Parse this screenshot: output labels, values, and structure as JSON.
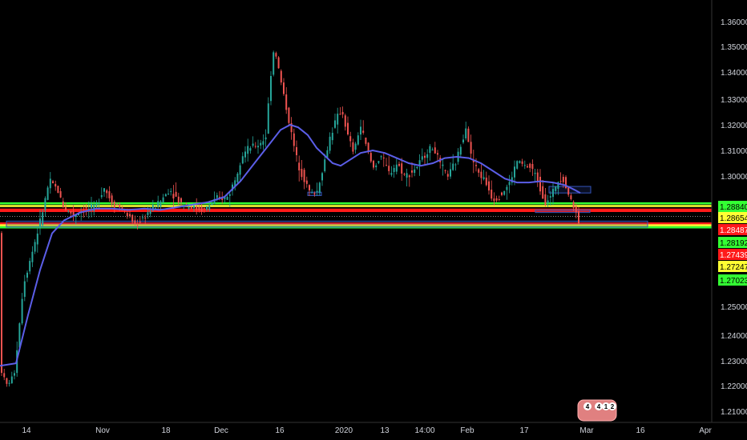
{
  "chart_data": {
    "type": "candlestick",
    "colors": {
      "background": "#000000",
      "bull": "#26a69a",
      "bear": "#ef5350",
      "moving_average": "#5b5ee8",
      "axis_text": "#d1d4dc",
      "green_level": "#33ff33",
      "red_level": "#ff1a1a",
      "yellow_level": "#ffff33",
      "zone_border": "#3355bb"
    },
    "y_axis": {
      "min": 1.2,
      "max": 1.365,
      "position": "right",
      "ticks": [
        "1.36000",
        "1.35000",
        "1.34000",
        "1.33000",
        "1.32000",
        "1.31000",
        "1.30000",
        "1.25000",
        "1.24000",
        "1.23000",
        "1.22000",
        "1.21000"
      ]
    },
    "x_axis": {
      "ticks": [
        "14",
        "Nov",
        "18",
        "Dec",
        "16",
        "2020",
        "13",
        "14:00",
        "Feb",
        "17",
        "Mar",
        "16",
        "Apr"
      ]
    },
    "price_labels": [
      {
        "text": "1.28840",
        "value": 1.2884,
        "bg": "#33ff33",
        "fg": "#000000"
      },
      {
        "text": "1.28654",
        "value": 1.28654,
        "bg": "#ffff33",
        "fg": "#000000"
      },
      {
        "text": "1.28487",
        "value": 1.28487,
        "bg": "#ff1a1a",
        "fg": "#ffffff"
      },
      {
        "text": "1.28192",
        "value": 1.28192,
        "bg": "#33ff33",
        "fg": "#000000"
      },
      {
        "text": "1.27439",
        "value": 1.27439,
        "bg": "#ff1a1a",
        "fg": "#ffffff"
      },
      {
        "text": "1.27247",
        "value": 1.27247,
        "bg": "#ffff33",
        "fg": "#000000"
      },
      {
        "text": "1.27023",
        "value": 1.27023,
        "bg": "#33ff33",
        "fg": "#000000"
      }
    ],
    "horizontal_levels": [
      {
        "value": 1.2895,
        "color": "#33ff33"
      },
      {
        "value": 1.2885,
        "color": "#ffff33"
      },
      {
        "value": 1.2871,
        "color": "#ff1a1a"
      },
      {
        "value": 1.2866,
        "color": "#ff1a1a"
      },
      {
        "value": 1.2818,
        "color": "#ff1a1a"
      },
      {
        "value": 1.2811,
        "color": "#ffff33"
      },
      {
        "value": 1.2803,
        "color": "#33ff33"
      }
    ],
    "price_path": [
      [
        0,
        1.229
      ],
      [
        8,
        1.22
      ],
      [
        18,
        1.224
      ],
      [
        30,
        1.259
      ],
      [
        40,
        1.27
      ],
      [
        52,
        1.284
      ],
      [
        62,
        1.298
      ],
      [
        72,
        1.295
      ],
      [
        80,
        1.288
      ],
      [
        92,
        1.285
      ],
      [
        105,
        1.287
      ],
      [
        120,
        1.288
      ],
      [
        130,
        1.296
      ],
      [
        140,
        1.29
      ],
      [
        150,
        1.288
      ],
      [
        160,
        1.285
      ],
      [
        170,
        1.281
      ],
      [
        185,
        1.286
      ],
      [
        200,
        1.29
      ],
      [
        212,
        1.295
      ],
      [
        225,
        1.29
      ],
      [
        240,
        1.288
      ],
      [
        255,
        1.287
      ],
      [
        270,
        1.291
      ],
      [
        285,
        1.292
      ],
      [
        295,
        1.3
      ],
      [
        302,
        1.308
      ],
      [
        312,
        1.311
      ],
      [
        322,
        1.312
      ],
      [
        332,
        1.315
      ],
      [
        340,
        1.345
      ],
      [
        343,
        1.35
      ],
      [
        350,
        1.338
      ],
      [
        357,
        1.328
      ],
      [
        365,
        1.315
      ],
      [
        372,
        1.305
      ],
      [
        380,
        1.299
      ],
      [
        388,
        1.293
      ],
      [
        396,
        1.294
      ],
      [
        405,
        1.305
      ],
      [
        412,
        1.315
      ],
      [
        420,
        1.322
      ],
      [
        427,
        1.326
      ],
      [
        435,
        1.315
      ],
      [
        442,
        1.309
      ],
      [
        450,
        1.32
      ],
      [
        458,
        1.311
      ],
      [
        466,
        1.303
      ],
      [
        476,
        1.308
      ],
      [
        486,
        1.301
      ],
      [
        496,
        1.305
      ],
      [
        506,
        1.3
      ],
      [
        516,
        1.302
      ],
      [
        524,
        1.305
      ],
      [
        534,
        1.31
      ],
      [
        542,
        1.311
      ],
      [
        550,
        1.304
      ],
      [
        560,
        1.3
      ],
      [
        570,
        1.306
      ],
      [
        578,
        1.315
      ],
      [
        582,
        1.32
      ],
      [
        588,
        1.308
      ],
      [
        596,
        1.302
      ],
      [
        606,
        1.298
      ],
      [
        616,
        1.291
      ],
      [
        626,
        1.293
      ],
      [
        636,
        1.297
      ],
      [
        646,
        1.306
      ],
      [
        654,
        1.304
      ],
      [
        664,
        1.303
      ],
      [
        672,
        1.298
      ],
      [
        680,
        1.29
      ],
      [
        688,
        1.292
      ],
      [
        696,
        1.298
      ],
      [
        702,
        1.3
      ],
      [
        710,
        1.293
      ],
      [
        716,
        1.288
      ],
      [
        720,
        1.287
      ],
      [
        724,
        1.278
      ]
    ],
    "moving_average": [
      [
        0,
        1.228
      ],
      [
        20,
        1.229
      ],
      [
        35,
        1.247
      ],
      [
        50,
        1.264
      ],
      [
        65,
        1.278
      ],
      [
        80,
        1.283
      ],
      [
        100,
        1.286
      ],
      [
        120,
        1.2875
      ],
      [
        140,
        1.2875
      ],
      [
        160,
        1.287
      ],
      [
        180,
        1.2875
      ],
      [
        200,
        1.287
      ],
      [
        220,
        1.288
      ],
      [
        240,
        1.289
      ],
      [
        260,
        1.29
      ],
      [
        280,
        1.292
      ],
      [
        300,
        1.298
      ],
      [
        320,
        1.306
      ],
      [
        335,
        1.312
      ],
      [
        350,
        1.318
      ],
      [
        362,
        1.32
      ],
      [
        372,
        1.319
      ],
      [
        384,
        1.316
      ],
      [
        395,
        1.311
      ],
      [
        405,
        1.308
      ],
      [
        415,
        1.305
      ],
      [
        425,
        1.304
      ],
      [
        435,
        1.306
      ],
      [
        450,
        1.309
      ],
      [
        465,
        1.31
      ],
      [
        480,
        1.309
      ],
      [
        495,
        1.307
      ],
      [
        510,
        1.305
      ],
      [
        525,
        1.304
      ],
      [
        540,
        1.305
      ],
      [
        555,
        1.307
      ],
      [
        570,
        1.3075
      ],
      [
        585,
        1.307
      ],
      [
        600,
        1.305
      ],
      [
        615,
        1.302
      ],
      [
        630,
        1.299
      ],
      [
        645,
        1.2975
      ],
      [
        660,
        1.2975
      ],
      [
        675,
        1.298
      ],
      [
        690,
        1.2975
      ],
      [
        705,
        1.2965
      ],
      [
        718,
        1.2945
      ],
      [
        724,
        1.2935
      ]
    ],
    "zones": [
      {
        "x1": 8,
        "x2": 808,
        "y_top": 1.2827,
        "y_bottom": 1.2804
      },
      {
        "x1": 685,
        "x2": 737,
        "y_top": 1.296,
        "y_bottom": 1.2935
      },
      {
        "x1": 668,
        "x2": 736,
        "y_top": 1.287,
        "y_bottom": 1.286
      },
      {
        "x1": 384,
        "x2": 401,
        "y_top": 1.2938,
        "y_bottom": 1.2925
      }
    ],
    "badge_text": [
      "4",
      "4",
      "1",
      "2"
    ]
  }
}
